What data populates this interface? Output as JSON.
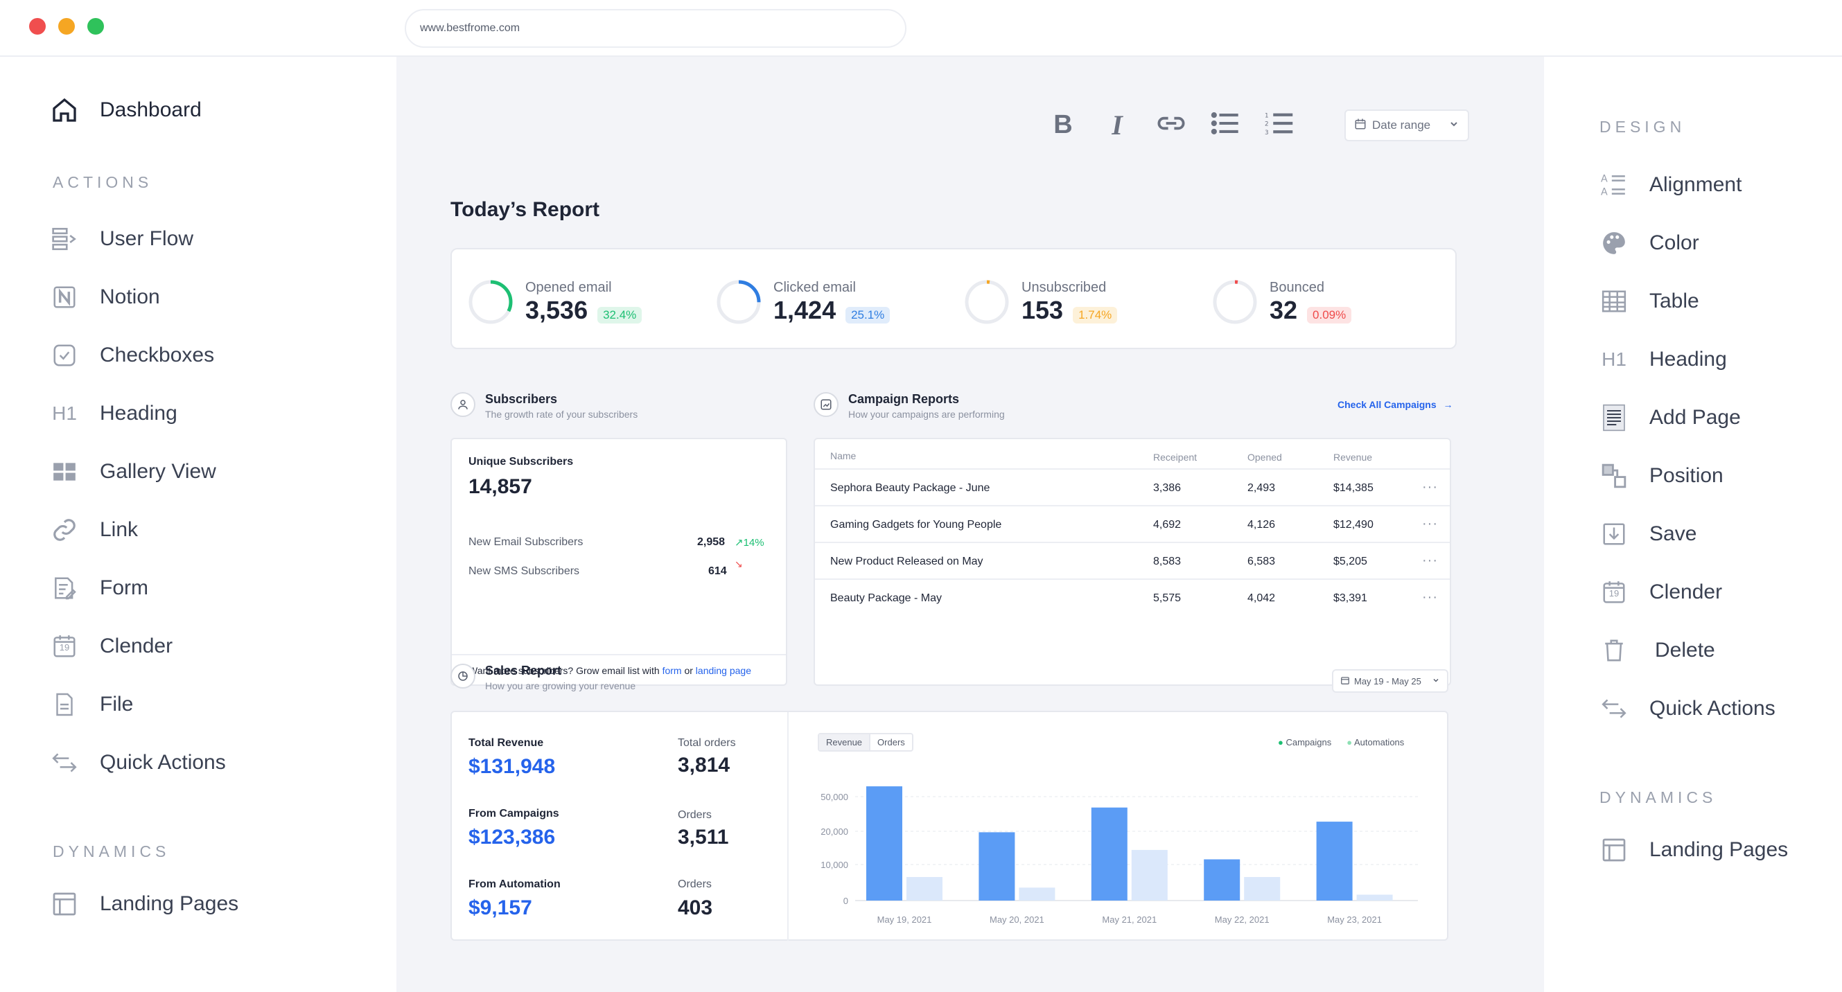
{
  "browser": {
    "url": "www.bestfrome.com",
    "dot_colors": [
      "#f04e4e",
      "#f5a623",
      "#2fc25b"
    ]
  },
  "left_sidebar": {
    "dashboard": "Dashboard",
    "actions_title": "ACTIONS",
    "items": [
      "User Flow",
      "Notion",
      "Checkboxes",
      "Heading",
      "Gallery View",
      "Link",
      "Form",
      "Clender",
      "File",
      "Quick Actions"
    ],
    "heading_glyph": "H1",
    "calendar_day": "19",
    "dynamics_title": "DYNAMICS",
    "landing": "Landing Pages"
  },
  "toolbar": {
    "bold": "B",
    "italic": "I",
    "date_range": "Date range"
  },
  "report": {
    "title": "Today’s Report",
    "kpis": [
      {
        "label": "Opened email",
        "value": "3,536",
        "badge": "32.4%",
        "color": "#1dbf73",
        "badge_bg": "#dff6ea",
        "fraction": 0.324
      },
      {
        "label": "Clicked email",
        "value": "1,424",
        "badge": "25.1%",
        "color": "#2f7de1",
        "badge_bg": "#e0ecfb",
        "fraction": 0.251
      },
      {
        "label": "Unsubscribed",
        "value": "153",
        "badge": "1.74%",
        "color": "#f5a623",
        "badge_bg": "#fdf1d9",
        "fraction": 0.0174
      },
      {
        "label": "Bounced",
        "value": "32",
        "badge": "0.09%",
        "color": "#ef4b4b",
        "badge_bg": "#fde3e3",
        "fraction": 0.0009
      }
    ]
  },
  "subscribers": {
    "title": "Subscribers",
    "subtitle": "The growth rate of your subscribers",
    "unique_label": "Unique Subscribers",
    "unique_value": "14,857",
    "email_label": "New Email Subscribers",
    "email_value": "2,958",
    "email_change": "14%",
    "sms_label": "New SMS Subscribers",
    "sms_value": "614",
    "footer_text": "Want more subscribers? Grow email list with",
    "footer_link1": "form",
    "footer_or": "or",
    "footer_link2": "landing page"
  },
  "campaigns": {
    "title": "Campaign Reports",
    "subtitle": "How your campaigns are performing",
    "check_all": "Check All Campaigns",
    "columns": [
      "Name",
      "Receipent",
      "Opened",
      "Revenue"
    ],
    "rows": [
      [
        "Sephora Beauty Package - June",
        "3,386",
        "2,493",
        "$14,385"
      ],
      [
        "Gaming Gadgets for Young People",
        "4,692",
        "4,126",
        "$12,490"
      ],
      [
        "New Product Released on May",
        "8,583",
        "6,583",
        "$5,205"
      ],
      [
        "Beauty Package - May",
        "5,575",
        "4,042",
        "$3,391"
      ]
    ],
    "row_menu": "···"
  },
  "sales": {
    "title": "Sales Report",
    "subtitle": "How you are growing your revenue",
    "date_range": "May 19 - May 25",
    "total_revenue_label": "Total Revenue",
    "total_revenue": "$131,948",
    "total_orders_label": "Total orders",
    "total_orders": "3,814",
    "campaigns_label": "From Campaigns",
    "campaigns_value": "$123,386",
    "orders_label": "Orders",
    "campaign_orders": "3,511",
    "automation_label": "From Automation",
    "automation_value": "$9,157",
    "automation_orders": "403",
    "tab_revenue": "Revenue",
    "tab_orders": "Orders",
    "legend_campaigns": "Campaigns",
    "legend_automations": "Automations"
  },
  "chart_data": {
    "type": "bar",
    "categories": [
      "May 19, 2021",
      "May 20, 2021",
      "May 21, 2021",
      "May 22, 2021",
      "May 23, 2021"
    ],
    "y_ticks": [
      "50,000",
      "20,000",
      "10,000",
      "0"
    ],
    "series": [
      {
        "name": "Campaigns",
        "color": "#5b9cf5",
        "values": [
          0.97,
          0.58,
          0.79,
          0.35,
          0.67
        ]
      },
      {
        "name": "Automations",
        "color": "#dbe8fb",
        "values": [
          0.2,
          0.11,
          0.43,
          0.2,
          0.05
        ]
      }
    ],
    "grid": true,
    "legend_position": "top-right"
  },
  "design_panel": {
    "title": "DESIGN",
    "items": [
      "Alignment",
      "Color",
      "Table",
      "Heading",
      "Add Page",
      "Position",
      "Save",
      "Clender",
      "Delete",
      "Quick Actions"
    ],
    "heading_glyph": "H1",
    "calendar_day": "19",
    "dynamics_title": "DYNAMICS",
    "landing": "Landing Pages"
  }
}
